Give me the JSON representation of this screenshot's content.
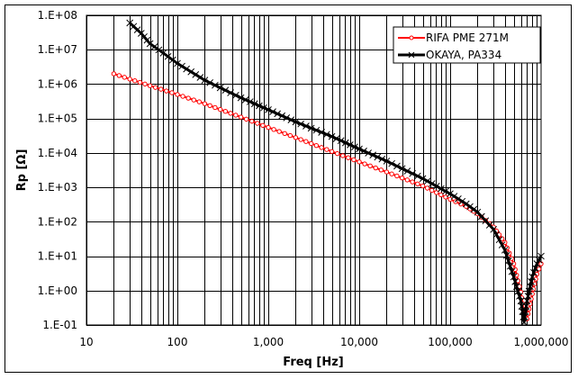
{
  "chart_data": {
    "type": "line",
    "title": "",
    "xlabel": "Freq [Hz]",
    "ylabel": "Rp [Ω]",
    "xscale": "log",
    "yscale": "log",
    "xlim": [
      10,
      1000000
    ],
    "ylim": [
      0.1,
      100000000
    ],
    "grid": true,
    "legend_position": "upper right",
    "x_tick_labels": [
      "10",
      "100",
      "1,000",
      "10,000",
      "100,000",
      "1,000,000"
    ],
    "y_tick_labels": [
      "1.E-01",
      "1.E+00",
      "1.E+01",
      "1.E+02",
      "1.E+03",
      "1.E+04",
      "1.E+05",
      "1.E+06",
      "1.E+07",
      "1.E+08"
    ],
    "series": [
      {
        "name": "RIFA PME 271M",
        "color": "#ff0000",
        "marker": "circle",
        "x": [
          20,
          30,
          50,
          100,
          200,
          500,
          1000,
          2000,
          5000,
          10000,
          20000,
          50000,
          100000,
          150000,
          200000,
          300000,
          400000,
          500000,
          600000,
          650000,
          700000,
          800000,
          900000,
          1000000
        ],
        "y": [
          2000000,
          1400000,
          900000,
          500000,
          270000,
          110000,
          55000,
          28000,
          11000,
          5500,
          2800,
          1100,
          450,
          280,
          170,
          70,
          25,
          6,
          0.9,
          0.2,
          0.15,
          0.8,
          3,
          6
        ]
      },
      {
        "name": "OKAYA, PA334",
        "color": "#000000",
        "marker": "x",
        "x": [
          30,
          40,
          50,
          70,
          100,
          200,
          500,
          1000,
          2000,
          5000,
          10000,
          20000,
          50000,
          100000,
          150000,
          200000,
          300000,
          400000,
          500000,
          600000,
          650000,
          700000,
          800000,
          900000,
          1000000
        ],
        "y": [
          60000000,
          30000000,
          15000000,
          8000000,
          4000000,
          1300000,
          400000,
          180000,
          80000,
          30000,
          13000,
          5800,
          1800,
          650,
          330,
          190,
          60,
          15,
          2.5,
          0.5,
          0.12,
          0.5,
          2.5,
          6,
          10
        ]
      }
    ]
  },
  "legend": {
    "items": [
      {
        "label": "RIFA PME 271M",
        "color": "#ff0000",
        "marker": "circle"
      },
      {
        "label": "OKAYA, PA334",
        "color": "#000000",
        "marker": "x"
      }
    ]
  },
  "axes": {
    "xlabel": "Freq [Hz]",
    "ylabel": "Rp [Ω]",
    "x_ticks": [
      "10",
      "100",
      "1,000",
      "10,000",
      "100,000",
      "1,000,000"
    ],
    "y_ticks": [
      "1.E-01",
      "1.E+00",
      "1.E+01",
      "1.E+02",
      "1.E+03",
      "1.E+04",
      "1.E+05",
      "1.E+06",
      "1.E+07",
      "1.E+08"
    ]
  }
}
